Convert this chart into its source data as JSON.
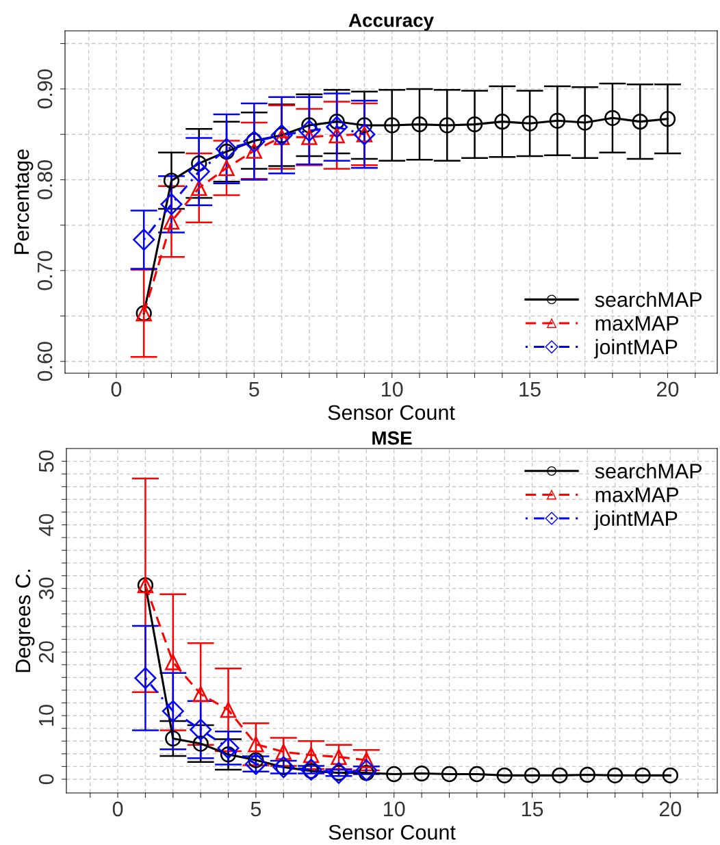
{
  "chart_data": [
    {
      "type": "line",
      "title": "Accuracy",
      "xlabel": "Sensor Count",
      "ylabel": "Percentage",
      "x": [
        1,
        2,
        3,
        4,
        5,
        6,
        7,
        8,
        9,
        10,
        11,
        12,
        13,
        14,
        15,
        16,
        17,
        18,
        19,
        20
      ],
      "series": [
        {
          "name": "searchMAP",
          "color": "#000000",
          "marker": "circle",
          "line_style": "solid",
          "values": [
            0.653,
            0.799,
            0.818,
            0.831,
            0.843,
            0.849,
            0.86,
            0.864,
            0.86,
            0.86,
            0.861,
            0.86,
            0.861,
            0.864,
            0.862,
            0.865,
            0.863,
            0.868,
            0.864,
            0.867
          ],
          "errors": [
            null,
            0.031,
            0.038,
            0.033,
            0.031,
            0.034,
            0.034,
            0.035,
            0.037,
            0.039,
            0.039,
            0.039,
            0.037,
            0.039,
            0.036,
            0.038,
            0.039,
            0.038,
            0.041,
            0.038
          ]
        },
        {
          "name": "maxMAP",
          "color": "#ff0000",
          "marker": "triangle",
          "line_style": "dashed",
          "values": [
            0.653,
            0.754,
            0.791,
            0.813,
            0.832,
            0.847,
            0.847,
            0.849,
            0.85,
            null,
            null,
            null,
            null,
            null,
            null,
            null,
            null,
            null,
            null,
            null
          ],
          "errors": [
            0.048,
            0.039,
            0.038,
            0.03,
            0.031,
            0.035,
            0.031,
            0.037,
            0.034,
            null,
            null,
            null,
            null,
            null,
            null,
            null,
            null,
            null,
            null,
            null
          ]
        },
        {
          "name": "jointMAP",
          "color": "#0000ff",
          "marker": "diamond",
          "line_style": "dashdot",
          "values": [
            0.734,
            0.773,
            0.809,
            0.834,
            0.842,
            0.849,
            0.854,
            0.858,
            0.85,
            null,
            null,
            null,
            null,
            null,
            null,
            null,
            null,
            null,
            null,
            null
          ],
          "errors": [
            0.032,
            0.031,
            0.037,
            0.038,
            0.042,
            0.042,
            0.037,
            0.037,
            0.037,
            null,
            null,
            null,
            null,
            null,
            null,
            null,
            null,
            null,
            null,
            null
          ]
        }
      ],
      "xlim": [
        -1.86,
        21.8
      ],
      "ylim": [
        0.587,
        0.964
      ],
      "xticks": [
        {
          "value": -1,
          "label": null
        },
        0,
        {
          "value": 1,
          "label": null
        },
        {
          "value": 2,
          "label": null
        },
        {
          "value": 3,
          "label": null
        },
        {
          "value": 4,
          "label": null
        },
        5,
        {
          "value": 6,
          "label": null
        },
        {
          "value": 7,
          "label": null
        },
        {
          "value": 8,
          "label": null
        },
        {
          "value": 9,
          "label": null
        },
        10,
        {
          "value": 11,
          "label": null
        },
        {
          "value": 12,
          "label": null
        },
        {
          "value": 13,
          "label": null
        },
        {
          "value": 14,
          "label": null
        },
        15,
        {
          "value": 16,
          "label": null
        },
        {
          "value": 17,
          "label": null
        },
        {
          "value": 18,
          "label": null
        },
        {
          "value": 19,
          "label": null
        },
        20,
        {
          "value": 21,
          "label": null
        }
      ],
      "yticks": [
        {
          "value": 0.6,
          "label": "0.60"
        },
        {
          "value": 0.65,
          "label": null
        },
        {
          "value": 0.7,
          "label": "0.70"
        },
        {
          "value": 0.75,
          "label": null
        },
        {
          "value": 0.8,
          "label": "0.80"
        },
        {
          "value": 0.85,
          "label": null
        },
        {
          "value": 0.9,
          "label": "0.90"
        },
        {
          "value": 0.95,
          "label": null
        }
      ],
      "grid": true,
      "legend": "bottom right"
    },
    {
      "type": "line",
      "title": "MSE",
      "xlabel": "Sensor Count",
      "ylabel": "Degrees C.",
      "x": [
        1,
        2,
        3,
        4,
        5,
        6,
        7,
        8,
        9,
        10,
        11,
        12,
        13,
        14,
        15,
        16,
        17,
        18,
        19,
        20
      ],
      "series": [
        {
          "name": "searchMAP",
          "color": "#000000",
          "marker": "circle",
          "line_style": "solid",
          "values": [
            30.5,
            6.4,
            5.6,
            3.9,
            3.0,
            1.9,
            1.3,
            1.0,
            1.0,
            0.8,
            0.9,
            0.8,
            0.8,
            0.6,
            0.6,
            0.6,
            0.7,
            0.6,
            0.6,
            0.6
          ],
          "errors": [
            null,
            2.75,
            2.9,
            2.4,
            null,
            null,
            null,
            null,
            null,
            null,
            null,
            null,
            null,
            null,
            null,
            null,
            null,
            null,
            null,
            null
          ]
        },
        {
          "name": "maxMAP",
          "color": "#ff0000",
          "marker": "triangle",
          "line_style": "dashed",
          "values": [
            30.5,
            18.4,
            13.4,
            10.9,
            5.5,
            4.3,
            3.8,
            3.5,
            3.0,
            null,
            null,
            null,
            null,
            null,
            null,
            null,
            null,
            null,
            null,
            null
          ],
          "errors": [
            16.8,
            10.7,
            8.0,
            6.5,
            3.3,
            2.2,
            2.2,
            1.9,
            1.6,
            null,
            null,
            null,
            null,
            null,
            null,
            null,
            null,
            null,
            null,
            null
          ]
        },
        {
          "name": "jointMAP",
          "color": "#0000ff",
          "marker": "diamond",
          "line_style": "dashdot",
          "values": [
            15.9,
            10.7,
            7.8,
            4.9,
            2.4,
            1.9,
            1.5,
            1.0,
            1.4,
            null,
            null,
            null,
            null,
            null,
            null,
            null,
            null,
            null,
            null,
            null
          ],
          "errors": [
            8.2,
            6.0,
            4.5,
            2.6,
            1.2,
            1.0,
            0.6,
            0.5,
            0.6,
            null,
            null,
            null,
            null,
            null,
            null,
            null,
            null,
            null,
            null,
            null
          ]
        }
      ],
      "xlim": [
        -1.86,
        21.7
      ],
      "ylim": [
        -2.16,
        52.0
      ],
      "xticks": [
        {
          "value": -1,
          "label": null
        },
        0,
        {
          "value": 1,
          "label": null
        },
        {
          "value": 2,
          "label": null
        },
        {
          "value": 3,
          "label": null
        },
        {
          "value": 4,
          "label": null
        },
        5,
        {
          "value": 6,
          "label": null
        },
        {
          "value": 7,
          "label": null
        },
        {
          "value": 8,
          "label": null
        },
        {
          "value": 9,
          "label": null
        },
        10,
        {
          "value": 11,
          "label": null
        },
        {
          "value": 12,
          "label": null
        },
        {
          "value": 13,
          "label": null
        },
        {
          "value": 14,
          "label": null
        },
        15,
        {
          "value": 16,
          "label": null
        },
        {
          "value": 17,
          "label": null
        },
        {
          "value": 18,
          "label": null
        },
        {
          "value": 19,
          "label": null
        },
        20,
        {
          "value": 21,
          "label": null
        }
      ],
      "yticks": [
        0,
        {
          "value": 2,
          "label": null
        },
        {
          "value": 4,
          "label": null
        },
        {
          "value": 6,
          "label": null
        },
        {
          "value": 8,
          "label": null
        },
        10,
        {
          "value": 12,
          "label": null
        },
        {
          "value": 14,
          "label": null
        },
        {
          "value": 16,
          "label": null
        },
        {
          "value": 18,
          "label": null
        },
        20,
        {
          "value": 22,
          "label": null
        },
        {
          "value": 24,
          "label": null
        },
        {
          "value": 26,
          "label": null
        },
        {
          "value": 28,
          "label": null
        },
        30,
        {
          "value": 32,
          "label": null
        },
        {
          "value": 34,
          "label": null
        },
        {
          "value": 36,
          "label": null
        },
        {
          "value": 38,
          "label": null
        },
        40,
        {
          "value": 42,
          "label": null
        },
        {
          "value": 44,
          "label": null
        },
        {
          "value": 46,
          "label": null
        },
        {
          "value": 48,
          "label": null
        },
        50
      ],
      "grid": true,
      "legend": "top right"
    }
  ]
}
